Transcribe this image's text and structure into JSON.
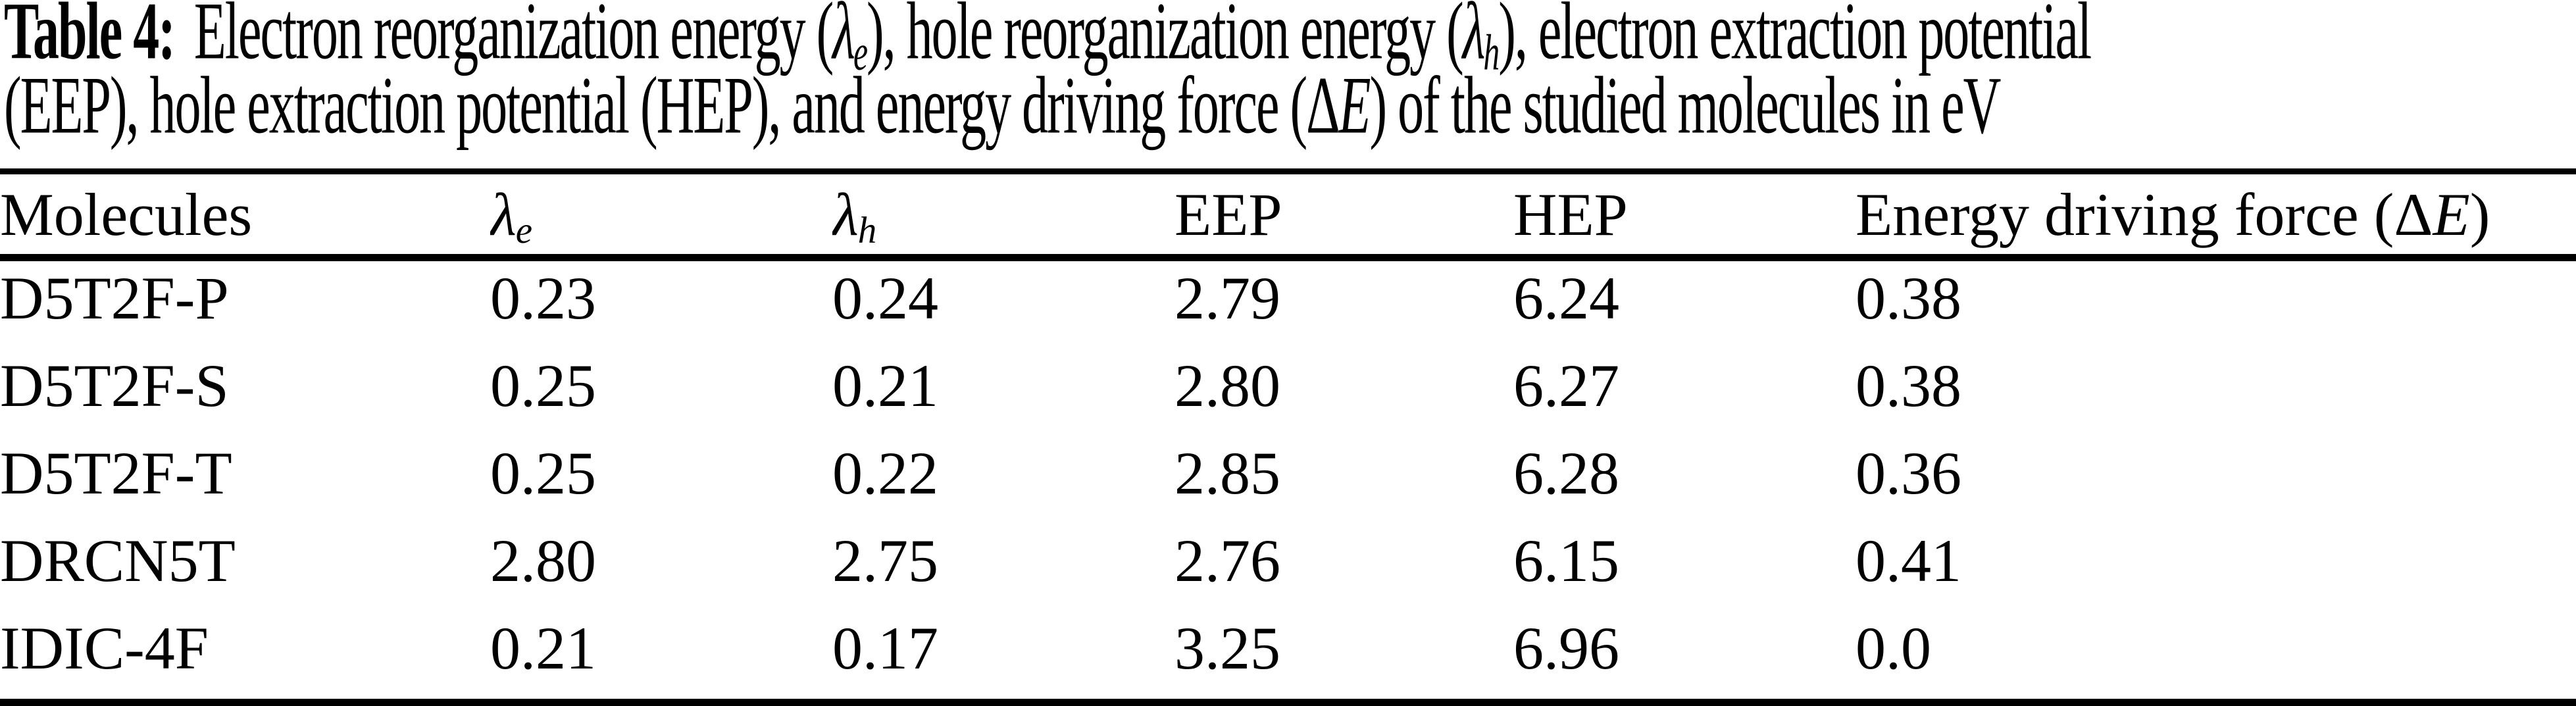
{
  "page": {
    "background": "#ffffff",
    "ink": "#000000"
  },
  "caption": {
    "line1": {
      "label": "Table 4:",
      "segments": [
        {
          "t": "Electron reorganization energy ("
        },
        {
          "t": "λ",
          "s": "it"
        },
        {
          "t": "e",
          "s": "sub"
        },
        {
          "t": "), hole reorganization energy ("
        },
        {
          "t": "λ",
          "s": "it"
        },
        {
          "t": "h",
          "s": "sub"
        },
        {
          "t": "), electron extraction potential"
        }
      ]
    },
    "line2": {
      "segments": [
        {
          "t": "(EEP), hole extraction potential (HEP), and energy driving force ("
        },
        {
          "t": "Δ"
        },
        {
          "t": "E",
          "s": "it"
        },
        {
          "t": ") of the studied molecules in eV"
        }
      ]
    }
  },
  "table": {
    "header": {
      "molecules": {
        "segments": [
          {
            "t": "Molecules"
          }
        ]
      },
      "lambda_e": {
        "segments": [
          {
            "t": "λ",
            "s": "it"
          },
          {
            "t": "e",
            "s": "sub"
          }
        ]
      },
      "lambda_h": {
        "segments": [
          {
            "t": "λ",
            "s": "it"
          },
          {
            "t": "h",
            "s": "sub"
          }
        ]
      },
      "eep": {
        "segments": [
          {
            "t": "EEP"
          }
        ]
      },
      "hep": {
        "segments": [
          {
            "t": "HEP"
          }
        ]
      },
      "driving_force": {
        "segments": [
          {
            "t": "Energy driving force ("
          },
          {
            "t": "Δ"
          },
          {
            "t": "E",
            "s": "it"
          },
          {
            "t": ")"
          }
        ]
      }
    },
    "rows": [
      {
        "molecules": "D5T2F-P",
        "lambda_e": "0.23",
        "lambda_h": "0.24",
        "eep": "2.79",
        "hep": "6.24",
        "driving_force": "0.38"
      },
      {
        "molecules": "D5T2F-S",
        "lambda_e": "0.25",
        "lambda_h": "0.21",
        "eep": "2.80",
        "hep": "6.27",
        "driving_force": "0.38"
      },
      {
        "molecules": "D5T2F-T",
        "lambda_e": "0.25",
        "lambda_h": "0.22",
        "eep": "2.85",
        "hep": "6.28",
        "driving_force": "0.36"
      },
      {
        "molecules": "DRCN5T",
        "lambda_e": "2.80",
        "lambda_h": "2.75",
        "eep": "2.76",
        "hep": "6.15",
        "driving_force": "0.41"
      },
      {
        "molecules": "IDIC-4F",
        "lambda_e": "0.21",
        "lambda_h": "0.17",
        "eep": "3.25",
        "hep": "6.96",
        "driving_force": "0.0"
      }
    ]
  }
}
